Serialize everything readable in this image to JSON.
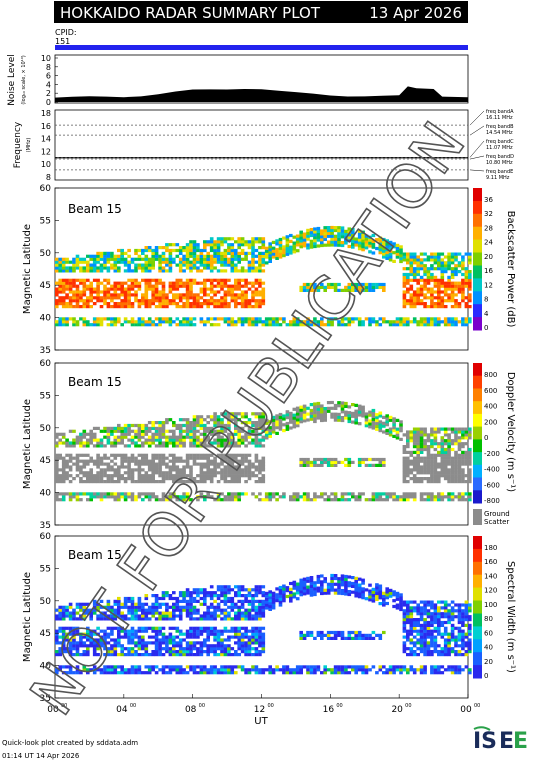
{
  "header": {
    "title": "HOKKAIDO RADAR SUMMARY PLOT",
    "date": "13 Apr 2026",
    "cpid_label": "CPID:",
    "cpid_value": "151"
  },
  "watermark": "NOT FOR PUBLICATION",
  "footer": {
    "created": "Quick-look plot created by sddata.adm",
    "timestamp": "01:14 UT 14 Apr 2026"
  },
  "logo": "ISEE",
  "colors": {
    "cpid_bar": "#2222ee",
    "ground_scatter": "#8c8c8c",
    "power_scale": [
      "#7a00cc",
      "#2a2aff",
      "#0090ff",
      "#00c8c8",
      "#00c060",
      "#7ed000",
      "#e0e000",
      "#ffb000",
      "#ff7000",
      "#ff3000",
      "#e00000"
    ],
    "velocity_scale": [
      "#1a1acc",
      "#2a6aff",
      "#00b0ff",
      "#00d0a0",
      "#00c000",
      "#9ad000",
      "#ffff00",
      "#ffc000",
      "#ff8000",
      "#ff4000",
      "#e00000"
    ],
    "width_scale": [
      "#2a2aee",
      "#1a60ff",
      "#00a0ff",
      "#00d0d0",
      "#00c060",
      "#80d000",
      "#e0e000",
      "#ffb000",
      "#ff7000",
      "#ff3000",
      "#e00000"
    ]
  },
  "chart_data": [
    {
      "type": "area",
      "panel": "noise",
      "ylabel": "Noise Level",
      "ylabel_sub": "(log₁₀ scale, × 10¹⁰)",
      "ylim": [
        0,
        10
      ],
      "yticks": [
        "10",
        "8",
        "6",
        "4",
        "2",
        "0"
      ],
      "x": [
        0,
        1,
        2,
        3,
        4,
        5,
        6,
        7,
        8,
        9,
        10,
        11,
        12,
        13,
        14,
        15,
        16,
        17,
        18,
        19,
        20,
        20.5,
        21,
        22,
        22.5,
        24
      ],
      "y": [
        1.0,
        1.0,
        1.1,
        1.2,
        1.3,
        1.5,
        1.8,
        2.2,
        2.6,
        2.8,
        3.0,
        3.2,
        3.0,
        2.4,
        2.0,
        1.8,
        1.6,
        1.5,
        1.4,
        1.3,
        1.3,
        3.4,
        3.2,
        3.2,
        1.4,
        1.0
      ]
    },
    {
      "type": "line",
      "panel": "frequency",
      "ylabel": "Frequency",
      "ylabel_sub": "(MHz)",
      "ylim": [
        8,
        18
      ],
      "yticks": [
        "18",
        "16",
        "14",
        "12",
        "10",
        "8"
      ],
      "bands": [
        {
          "label": "freq bandA",
          "value": "16.11 MHz"
        },
        {
          "label": "freq bandB",
          "value": "14.54 MHz"
        },
        {
          "label": "freq bandC",
          "value": "11.07 MHz"
        },
        {
          "label": "freq bandD",
          "value": "10.80 MHz"
        },
        {
          "label": "freq bandE",
          "value": "9.11 MHz"
        }
      ],
      "series": [
        {
          "values": [
            11.0
          ]
        }
      ]
    },
    {
      "type": "heatmap",
      "panel": "power",
      "beam_label": "Beam 15",
      "ylabel": "Magnetic Latitude",
      "ylim": [
        35,
        60
      ],
      "yticks": [
        "60",
        "55",
        "50",
        "45",
        "40",
        "35"
      ],
      "colorbar_label": "Backscatter Power (dB)",
      "colorbar_ticks": [
        "36",
        "32",
        "28",
        "24",
        "20",
        "16",
        "12",
        "8",
        "4",
        "0"
      ]
    },
    {
      "type": "heatmap",
      "panel": "velocity",
      "beam_label": "Beam 15",
      "ylabel": "Magnetic Latitude",
      "ylim": [
        35,
        60
      ],
      "yticks": [
        "60",
        "55",
        "50",
        "45",
        "40",
        "35"
      ],
      "colorbar_label": "Doppler Velocity (m s⁻¹)",
      "colorbar_ticks": [
        "800",
        "600",
        "400",
        "200",
        "0",
        "-200",
        "-400",
        "-600",
        "-800"
      ],
      "ground_scatter_label": [
        "Ground",
        "Scatter"
      ]
    },
    {
      "type": "heatmap",
      "panel": "width",
      "beam_label": "Beam 15",
      "ylabel": "Magnetic Latitude",
      "ylim": [
        35,
        60
      ],
      "yticks": [
        "60",
        "55",
        "50",
        "45",
        "40",
        "35"
      ],
      "colorbar_label": "Spectral Width (m s⁻¹)",
      "colorbar_ticks": [
        "180",
        "160",
        "140",
        "120",
        "100",
        "80",
        "60",
        "40",
        "20",
        "0"
      ],
      "xlabel": "UT",
      "xticks": [
        "00",
        "04",
        "08",
        "12",
        "16",
        "20",
        "00"
      ],
      "xtick_sup": "00"
    }
  ]
}
